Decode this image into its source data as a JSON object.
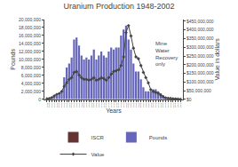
{
  "chart_data": {
    "type": "bar",
    "title": "Uranium Production 1948-2002",
    "xlabel": "Years",
    "ylabel": "Pounds",
    "y2label": "Value in dollars",
    "x": [
      1948,
      1949,
      1950,
      1951,
      1952,
      1953,
      1954,
      1955,
      1956,
      1957,
      1958,
      1959,
      1960,
      1961,
      1962,
      1963,
      1964,
      1965,
      1966,
      1967,
      1968,
      1969,
      1970,
      1971,
      1972,
      1973,
      1974,
      1975,
      1976,
      1977,
      1978,
      1979,
      1980,
      1981,
      1982,
      1983,
      1984,
      1985,
      1986,
      1987,
      1988,
      1989,
      1990,
      1991,
      1992,
      1993,
      1994,
      1995,
      1996,
      1997,
      1998,
      1999,
      2000,
      2001,
      2002
    ],
    "xlim": [
      1947,
      2003
    ],
    "xticks": [
      1948,
      1949,
      1950,
      1951,
      1952,
      1953,
      1954,
      1955,
      1956,
      1957,
      1958,
      1959,
      1960,
      1961,
      1962,
      1963,
      1964,
      1965,
      1966,
      1967,
      1968,
      1969,
      1970,
      1971,
      1972,
      1973,
      1974,
      1975,
      1976,
      1977,
      1978,
      1979,
      1980,
      1981,
      1982,
      1983,
      1984,
      1985,
      1986,
      1987,
      1988,
      1989,
      1990,
      1991,
      1992,
      1993,
      1994,
      1995,
      1996,
      1997,
      1998,
      1999,
      2000,
      2001,
      2002
    ],
    "ylim": [
      0,
      20000000
    ],
    "yticks": [
      0,
      {
        "value": 2000000,
        "label": "2,000,000"
      },
      {
        "value": 4000000,
        "label": "4,000,000"
      },
      {
        "value": 6000000,
        "label": "6,000,000"
      },
      {
        "value": 8000000,
        "label": "8,000,000"
      },
      {
        "value": 10000000,
        "label": "10,000,000"
      },
      {
        "value": 12000000,
        "label": "12,000,000"
      },
      {
        "value": 14000000,
        "label": "14,000,000"
      },
      {
        "value": 16000000,
        "label": "16,000,000"
      },
      {
        "value": 18000000,
        "label": "18,000,000"
      },
      {
        "value": 20000000,
        "label": "20,000,000"
      }
    ],
    "y2lim": [
      0,
      460000000
    ],
    "y2ticks": [
      {
        "value": 0,
        "label": "$0"
      },
      {
        "value": 50000000,
        "label": "$50,000,000"
      },
      {
        "value": 100000000,
        "label": "$100,000,000"
      },
      {
        "value": 150000000,
        "label": "$150,000,000"
      },
      {
        "value": 200000000,
        "label": "$200,000,000"
      },
      {
        "value": 250000000,
        "label": "$250,000,000"
      },
      {
        "value": 300000000,
        "label": "$300,000,000"
      },
      {
        "value": 350000000,
        "label": "$350,000,000"
      },
      {
        "value": 400000000,
        "label": "$400,000,000"
      },
      {
        "value": 450000000,
        "label": "$450,000,000"
      }
    ],
    "series": [
      {
        "name": "ISCR",
        "type": "bar",
        "color": "#663333",
        "values": [
          0,
          0,
          0,
          0,
          0,
          0,
          0,
          0,
          0,
          0,
          0,
          0,
          0,
          0,
          0,
          0,
          0,
          0,
          0,
          0,
          0,
          0,
          0,
          0,
          0,
          0,
          0,
          0,
          0,
          0,
          0,
          0,
          0,
          0,
          0,
          0,
          0,
          0,
          0,
          0,
          0,
          0,
          0,
          0,
          0,
          0,
          0,
          0,
          0,
          0,
          0,
          0,
          0,
          0,
          0
        ]
      },
      {
        "name": "Pounds",
        "type": "bar",
        "color": "#6666bb",
        "values": [
          100000,
          200000,
          400000,
          700000,
          900000,
          1200000,
          2000000,
          5500000,
          8000000,
          9000000,
          10500000,
          15000000,
          15500000,
          13500000,
          11000000,
          10000000,
          10500000,
          10000000,
          11000000,
          12500000,
          10000000,
          11000000,
          12000000,
          11000000,
          10500000,
          12000000,
          13000000,
          12500000,
          13000000,
          13000000,
          16000000,
          17500000,
          18500000,
          15000000,
          12500000,
          9000000,
          7000000,
          7000000,
          5000000,
          3000000,
          2000000,
          2000000,
          2000000,
          2500000,
          2500000,
          2000000,
          1500000,
          1000000,
          500000,
          500000,
          500000,
          300000,
          200000,
          100000,
          100000
        ]
      },
      {
        "name": "Value",
        "type": "line",
        "axis": "y2",
        "color": "#444444",
        "marker": "diamond",
        "line_style": "solid",
        "values": [
          3000000,
          5000000,
          10000000,
          20000000,
          28000000,
          33000000,
          45000000,
          75000000,
          95000000,
          115000000,
          125000000,
          155000000,
          160000000,
          140000000,
          125000000,
          115000000,
          115000000,
          110000000,
          115000000,
          125000000,
          110000000,
          115000000,
          125000000,
          120000000,
          110000000,
          125000000,
          145000000,
          160000000,
          165000000,
          170000000,
          195000000,
          245000000,
          385000000,
          425000000,
          365000000,
          295000000,
          245000000,
          235000000,
          195000000,
          155000000,
          125000000,
          95000000,
          55000000,
          45000000,
          40000000,
          35000000,
          25000000,
          15000000,
          8000000,
          6000000,
          4000000,
          2500000,
          1500000,
          1500000,
          800000
        ]
      }
    ],
    "annotations": [
      {
        "text": "Mine\nWater\nRecovery\nonly",
        "x": 1991
      }
    ],
    "grid": false,
    "legend": "bottom"
  }
}
